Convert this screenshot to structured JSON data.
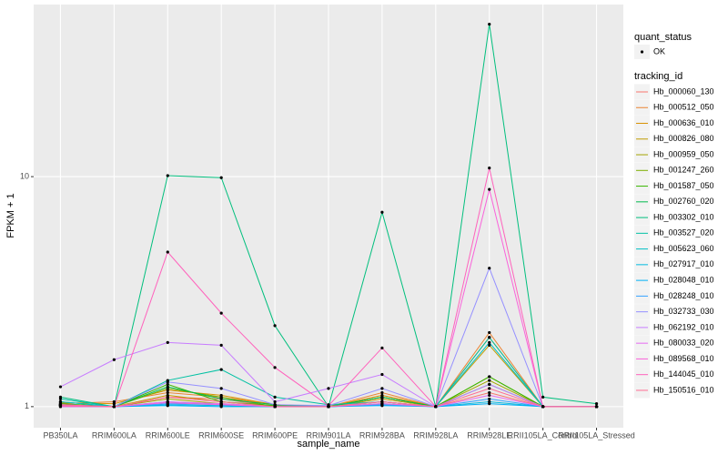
{
  "chart_data": {
    "type": "line",
    "x_label": "sample_name",
    "y_label": "FPKM + 1",
    "yscale": "log",
    "ylim": [
      0.81,
      56
    ],
    "yticks": [
      1,
      10
    ],
    "grid": true,
    "point_legend_title": "quant_status",
    "point_legend_entries": [
      "OK"
    ],
    "legend_title": "tracking_id",
    "legend_position": "right",
    "categories": [
      "PB350LA",
      "RRIM600LA",
      "RRIM600LE",
      "RRIM600SE",
      "RRIM600PE",
      "RRIM901LA",
      "RRIM928BA",
      "RRIM928LA",
      "RRIM928LE",
      "RRII105LA_Control",
      "RRII105LA_Stressed"
    ],
    "series": [
      {
        "name": "Hb_000060_130",
        "color": "#F8766D",
        "values": [
          1.02,
          1,
          1.1,
          1.08,
          1,
          1,
          1.1,
          1,
          1.15,
          1,
          1
        ]
      },
      {
        "name": "Hb_000512_050",
        "color": "#EA8331",
        "values": [
          1.03,
          1.05,
          1.15,
          1.1,
          1.02,
          1,
          1.15,
          1,
          2.1,
          1,
          1
        ]
      },
      {
        "name": "Hb_000636_010",
        "color": "#D89000",
        "values": [
          1.04,
          1.03,
          1.18,
          1.12,
          1.02,
          1,
          1.12,
          1,
          2.0,
          1,
          1
        ]
      },
      {
        "name": "Hb_000826_080",
        "color": "#C09B00",
        "values": [
          1.02,
          1,
          1.12,
          1.05,
          1,
          1,
          1.08,
          1,
          1.85,
          1,
          1
        ]
      },
      {
        "name": "Hb_000959_050",
        "color": "#A3A500",
        "values": [
          1.01,
          1,
          1.08,
          1.03,
          1,
          1,
          1.05,
          1,
          1.3,
          1,
          1
        ]
      },
      {
        "name": "Hb_001247_260",
        "color": "#7CAE00",
        "values": [
          1.02,
          1,
          1.2,
          1.1,
          1,
          1,
          1.05,
          1,
          1.35,
          1,
          1
        ]
      },
      {
        "name": "Hb_001587_050",
        "color": "#39B600",
        "values": [
          1.03,
          1,
          1.25,
          1.05,
          1.01,
          1,
          1.1,
          1,
          1.35,
          1,
          1
        ]
      },
      {
        "name": "Hb_002760_020",
        "color": "#00BB4E",
        "values": [
          1.05,
          1,
          1.22,
          1.08,
          1.02,
          1,
          1.1,
          1,
          1.25,
          1,
          1
        ]
      },
      {
        "name": "Hb_003302_010",
        "color": "#00BF7D",
        "values": [
          1.1,
          1,
          10.1,
          9.9,
          2.25,
          1,
          7,
          1,
          46,
          1.1,
          1.03
        ]
      },
      {
        "name": "Hb_003527_020",
        "color": "#00C1A3",
        "values": [
          1.08,
          1,
          1.3,
          1.45,
          1.1,
          1.02,
          1.05,
          1,
          2.0,
          1,
          1
        ]
      },
      {
        "name": "Hb_005623_060",
        "color": "#00BFC4",
        "values": [
          1.05,
          1,
          1.05,
          1.02,
          1,
          1,
          1.03,
          1,
          1.9,
          1,
          1
        ]
      },
      {
        "name": "Hb_027917_010",
        "color": "#00BAE0",
        "values": [
          1.01,
          1,
          1.02,
          1.01,
          1,
          1,
          1.02,
          1,
          1.05,
          1,
          1
        ]
      },
      {
        "name": "Hb_028048_010",
        "color": "#00B0F6",
        "values": [
          1,
          1,
          1.01,
          1,
          1,
          1,
          1.01,
          1,
          1.03,
          1,
          1
        ]
      },
      {
        "name": "Hb_028248_010",
        "color": "#35A2FF",
        "values": [
          1.01,
          1,
          1.03,
          1.02,
          1,
          1,
          1.02,
          1,
          1.08,
          1,
          1
        ]
      },
      {
        "name": "Hb_032733_030",
        "color": "#9590FF",
        "values": [
          1.02,
          1,
          1.28,
          1.2,
          1.02,
          1.01,
          1.2,
          1,
          4.0,
          1,
          1
        ]
      },
      {
        "name": "Hb_062192_010",
        "color": "#C77CFF",
        "values": [
          1.22,
          1.6,
          1.9,
          1.85,
          1.05,
          1.2,
          1.38,
          1,
          1.25,
          1,
          1
        ]
      },
      {
        "name": "Hb_080033_020",
        "color": "#E76BF3",
        "values": [
          1.01,
          1,
          1.05,
          1.03,
          1,
          1,
          1.05,
          1,
          1.12,
          1,
          1
        ]
      },
      {
        "name": "Hb_089568_010",
        "color": "#FA62DB",
        "values": [
          1,
          1,
          1.04,
          1.02,
          1,
          1,
          1.03,
          1,
          8.8,
          1,
          1
        ]
      },
      {
        "name": "Hb_144045_010",
        "color": "#FF62BC",
        "values": [
          1.02,
          1,
          4.7,
          2.55,
          1.48,
          1.01,
          1.8,
          1,
          10.9,
          1,
          1
        ]
      },
      {
        "name": "Hb_150516_010",
        "color": "#FF6C91",
        "values": [
          1.01,
          1,
          1.1,
          1.05,
          1,
          1,
          1.05,
          1,
          1.2,
          1,
          1
        ]
      }
    ]
  }
}
